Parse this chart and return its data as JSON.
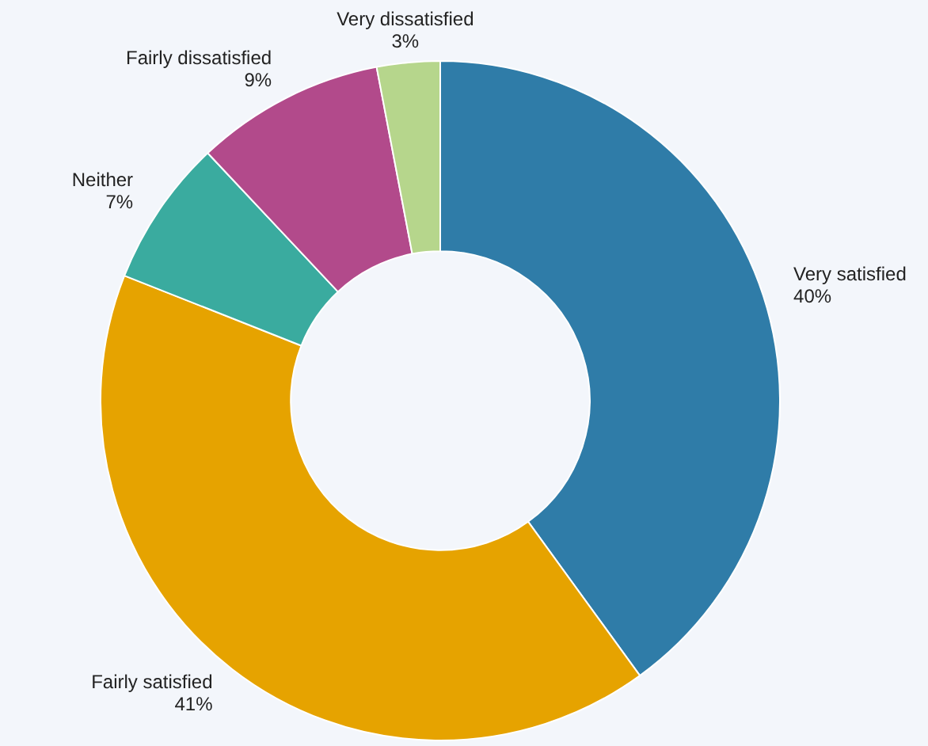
{
  "chart_data": {
    "type": "donut",
    "categories": [
      "Very satisfied",
      "Fairly satisfied",
      "Neither",
      "Fairly dissatisfied",
      "Very dissatisfied"
    ],
    "values": [
      40,
      41,
      7,
      9,
      3
    ],
    "colors": [
      "#2f7ca8",
      "#e6a300",
      "#3aab9f",
      "#b24a8b",
      "#b6d68c"
    ],
    "value_labels": [
      "40%",
      "41%",
      "7%",
      "9%",
      "3%"
    ],
    "legend": false
  }
}
